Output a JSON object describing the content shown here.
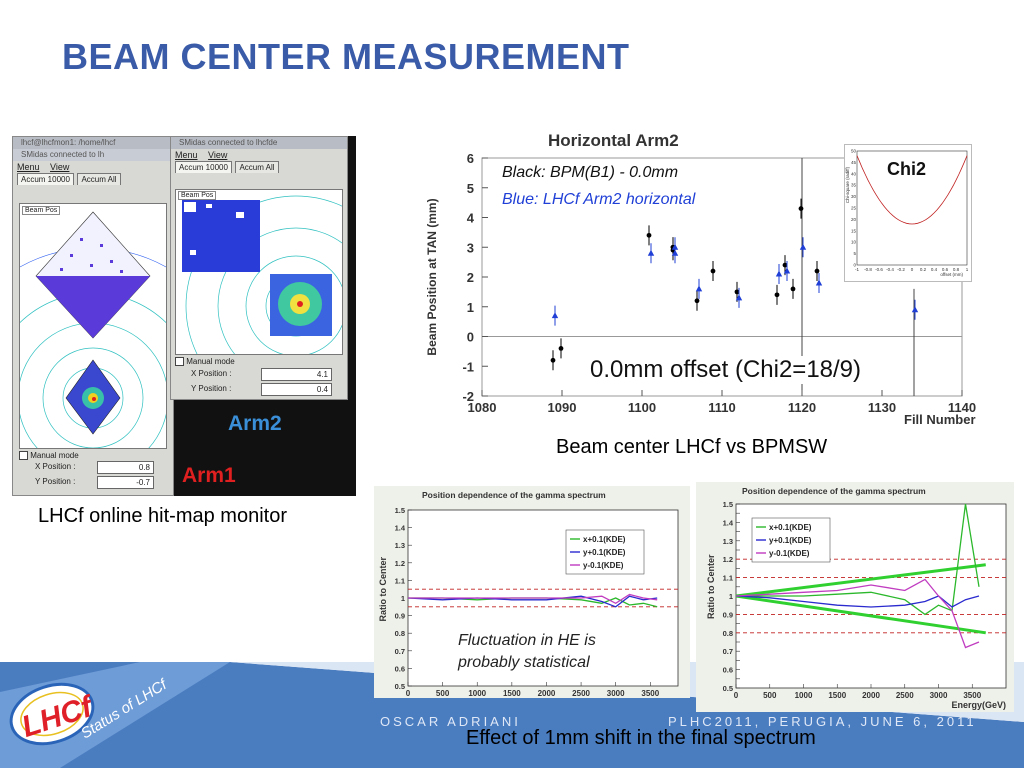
{
  "slide": {
    "title": "BEAM CENTER MEASUREMENT",
    "footer_author": "OSCAR ADRIANI",
    "footer_event": "PLHC2011, PERUGIA, JUNE 6, 2011",
    "footer_status": "Status of LHCf",
    "logo_text": "LHCf",
    "colors": {
      "title": "#3a5ba8",
      "footer_dark": "#3f73b3",
      "footer_light": "#7ea8d8"
    }
  },
  "monitor": {
    "caption": "LHCf online hit-map monitor",
    "arm2_label": "Arm2",
    "arm1_label": "Arm1",
    "win_left": {
      "titlebar1": "lhcf@lhcfmon1: /home/lhcf",
      "titlebar2": "SMidas connected to lh",
      "menu": [
        "Menu",
        "View"
      ],
      "tabs": [
        "Accum 10000",
        "Accum All"
      ],
      "plot_label": "Beam Pos",
      "manual_mode": "Manual mode",
      "x_label": "X Position :",
      "x_value": "0.8",
      "y_label": "Y Position :",
      "y_value": "-0.7"
    },
    "win_right": {
      "titlebar": "SMidas connected to lhcfde",
      "menu": [
        "Menu",
        "View"
      ],
      "tabs": [
        "Accum 10000",
        "Accum All"
      ],
      "plot_label": "Beam Pos",
      "manual_mode": "Manual mode",
      "x_label": "X Position :",
      "x_value": "4.1",
      "y_label": "Y Position :",
      "y_value": "0.4"
    }
  },
  "beam_chart": {
    "caption": "Beam center LHCf vs BPMSW",
    "legend_black": "Black: BPM(B1) - 0.0mm",
    "legend_blue": "Blue: LHCf Arm2 horizontal",
    "offset_text": "0.0mm offset (Chi2=18/9)",
    "inset_title": "Chi2",
    "inset_ylabel": "Chi-square (radiff)",
    "inset_xlabel": "offset (mm)",
    "inset_ticks_x": [
      "-1",
      "-0.8",
      "-0.6",
      "-0.4",
      "-0.2",
      "0",
      "0.2",
      "0.4",
      "0.6",
      "0.8",
      "1"
    ],
    "inset_ticks_y": [
      "0",
      "5",
      "10",
      "15",
      "20",
      "25",
      "30",
      "35",
      "40",
      "45",
      "50"
    ]
  },
  "spectrum_charts": {
    "caption": "Effect of 1mm shift in the final spectrum",
    "left_note_line1": "Fluctuation in HE is",
    "left_note_line2": "probably statistical"
  },
  "chart_data": [
    {
      "type": "scatter",
      "title": "Horizontal Arm2",
      "xlabel": "Fill Number",
      "ylabel": "Beam Position at TAN (mm)",
      "xlim": [
        1080,
        1140
      ],
      "ylim": [
        -2,
        6
      ],
      "x_ticks": [
        "1080",
        "1090",
        "1100",
        "1110",
        "1120",
        "1130",
        "1140"
      ],
      "y_ticks": [
        "-2",
        "-1",
        "0",
        "1",
        "2",
        "3",
        "4",
        "5",
        "6"
      ],
      "series": [
        {
          "color": "#000000",
          "x": [
            1089,
            1090,
            1101,
            1104,
            1104,
            1104,
            1107,
            1109,
            1112,
            1117,
            1118,
            1119,
            1120,
            1122
          ],
          "y": [
            -0.8,
            -0.4,
            3.4,
            3.0,
            2.9,
            3.0,
            1.2,
            2.2,
            1.5,
            1.4,
            2.4,
            1.6,
            4.3,
            2.2
          ]
        },
        {
          "color": "#1f3fd6",
          "x": [
            1089,
            1101,
            1104,
            1104,
            1107,
            1112,
            1117,
            1118,
            1120,
            1122,
            1134
          ],
          "y": [
            0.7,
            2.8,
            2.8,
            3.0,
            1.6,
            1.3,
            2.1,
            2.2,
            3.0,
            1.8,
            0.9
          ]
        }
      ]
    },
    {
      "type": "line",
      "title": "Position dependence of the gamma spectrum",
      "xlabel": "Energy(GeV)",
      "ylabel": "Ratio to Center",
      "xlim": [
        0,
        3900
      ],
      "ylim": [
        0.5,
        1.5
      ],
      "x_ticks": [
        "0",
        "500",
        "1000",
        "1500",
        "2000",
        "2500",
        "3000",
        "3500"
      ],
      "y_ticks": [
        "0.5",
        "0.6",
        "0.7",
        "0.8",
        "0.9",
        "1",
        "1.1",
        "1.2",
        "1.3",
        "1.4",
        "1.5"
      ],
      "legend": [
        "x+0.1(KDE)",
        "y+0.1(KDE)",
        "y-0.1(KDE)"
      ],
      "series": [
        {
          "name": "x+0.1(KDE)",
          "color": "#2cb82c",
          "x": [
            0,
            500,
            1000,
            1500,
            2000,
            2500,
            2800,
            3000,
            3200,
            3400,
            3600
          ],
          "y": [
            1.0,
            1.0,
            0.99,
            1.0,
            1.0,
            0.99,
            0.97,
            1.0,
            0.96,
            0.97,
            0.95
          ]
        },
        {
          "name": "y+0.1(KDE)",
          "color": "#2a2acf",
          "x": [
            0,
            500,
            1000,
            1500,
            2000,
            2500,
            2800,
            3000,
            3200,
            3400,
            3600
          ],
          "y": [
            1.0,
            0.99,
            1.0,
            0.99,
            0.99,
            1.01,
            0.98,
            0.95,
            1.01,
            0.99,
            1.0
          ]
        },
        {
          "name": "y-0.1(KDE)",
          "color": "#c03cc0",
          "x": [
            0,
            500,
            1000,
            1500,
            2000,
            2500,
            2800,
            3000,
            3200,
            3400,
            3600
          ],
          "y": [
            1.0,
            1.0,
            1.0,
            1.0,
            1.0,
            1.0,
            1.01,
            0.97,
            1.02,
            1.0,
            0.99
          ]
        }
      ],
      "reference_lines": [
        1.05,
        0.95
      ]
    },
    {
      "type": "line",
      "title": "Position dependence of the gamma spectrum",
      "xlabel": "Energy(GeV)",
      "ylabel": "Ratio to Center",
      "xlim": [
        0,
        4000
      ],
      "ylim": [
        0.5,
        1.5
      ],
      "x_ticks": [
        "0",
        "500",
        "1000",
        "1500",
        "2000",
        "2500",
        "3000",
        "3500"
      ],
      "y_ticks": [
        "0.5",
        "0.55",
        "0.6",
        "0.65",
        "0.7",
        "0.75",
        "0.8",
        "0.85",
        "0.9",
        "0.95",
        "1",
        "1.05",
        "1.1",
        "1.15",
        "1.2",
        "1.25",
        "1.3",
        "1.35",
        "1.4",
        "1.45",
        "1.5"
      ],
      "legend": [
        "x+0.1(KDE)",
        "y+0.1(KDE)",
        "y-0.1(KDE)"
      ],
      "series": [
        {
          "name": "x+0.1(KDE)",
          "color": "#2cb82c",
          "x": [
            0,
            500,
            1000,
            1500,
            2000,
            2500,
            2800,
            3000,
            3200,
            3400,
            3600
          ],
          "y": [
            1.0,
            1.0,
            1.0,
            1.01,
            1.02,
            0.98,
            0.9,
            0.95,
            0.92,
            1.5,
            1.05
          ]
        },
        {
          "name": "y+0.1(KDE)",
          "color": "#2a2acf",
          "x": [
            0,
            500,
            1000,
            1500,
            2000,
            2500,
            2800,
            3000,
            3200,
            3400,
            3600
          ],
          "y": [
            1.0,
            0.99,
            0.97,
            0.95,
            0.94,
            0.95,
            0.97,
            1.0,
            0.94,
            0.98,
            1.0
          ]
        },
        {
          "name": "y-0.1(KDE)",
          "color": "#c03cc0",
          "x": [
            0,
            500,
            1000,
            1500,
            2000,
            2500,
            2800,
            3000,
            3200,
            3400,
            3600
          ],
          "y": [
            1.0,
            1.01,
            1.02,
            1.03,
            1.06,
            1.03,
            1.09,
            1.0,
            0.92,
            0.72,
            0.75
          ]
        }
      ],
      "envelope_upper": {
        "x": [
          0,
          3700
        ],
        "y": [
          1.0,
          1.17
        ]
      },
      "envelope_lower": {
        "x": [
          0,
          3700
        ],
        "y": [
          1.0,
          0.8
        ]
      },
      "reference_lines": [
        1.2,
        1.1,
        0.9,
        0.8
      ]
    }
  ]
}
